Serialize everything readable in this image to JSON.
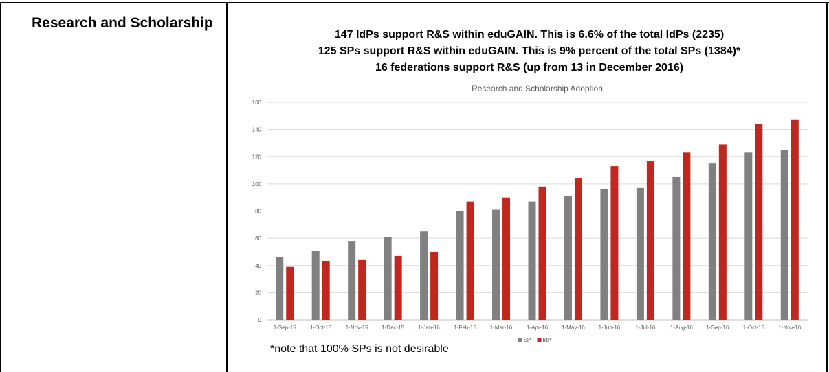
{
  "row": {
    "label": "Research and Scholarship"
  },
  "headlines": [
    "147 IdPs support R&S within eduGAIN.  This is 6.6% of the total IdPs (2235)",
    "125 SPs support R&S within eduGAIN.   This is 9% percent of the total SPs (1384)*",
    "16 federations support R&S (up from 13 in December 2016)"
  ],
  "note": "*note that 100% SPs is not desirable",
  "colors": {
    "sp": "#808080",
    "idp": "#c0271f",
    "grid": "#d9d9d9",
    "axis": "#bfbfbf"
  },
  "chart_data": {
    "type": "bar",
    "title": "Research and Scholarship Adoption",
    "categories": [
      "1-Sep-15",
      "1-Oct-15",
      "1-Nov-15",
      "1-Dec-15",
      "1-Jan-16",
      "1-Feb-16",
      "1-Mar-16",
      "1-Apr-16",
      "1-May-16",
      "1-Jun-16",
      "1-Jul-16",
      "1-Aug-16",
      "1-Sep-16",
      "1-Oct-16",
      "1-Nov-16"
    ],
    "series": [
      {
        "name": "SP",
        "values": [
          46,
          51,
          58,
          61,
          65,
          80,
          81,
          87,
          91,
          96,
          97,
          105,
          115,
          123,
          125
        ]
      },
      {
        "name": "IdP",
        "values": [
          39,
          43,
          44,
          47,
          50,
          87,
          90,
          98,
          104,
          113,
          117,
          123,
          129,
          144,
          147
        ]
      }
    ],
    "ylim": [
      0,
      160
    ],
    "yticks": [
      0,
      20,
      40,
      60,
      80,
      100,
      120,
      140,
      160
    ],
    "grid": true,
    "legend": "bottom"
  }
}
